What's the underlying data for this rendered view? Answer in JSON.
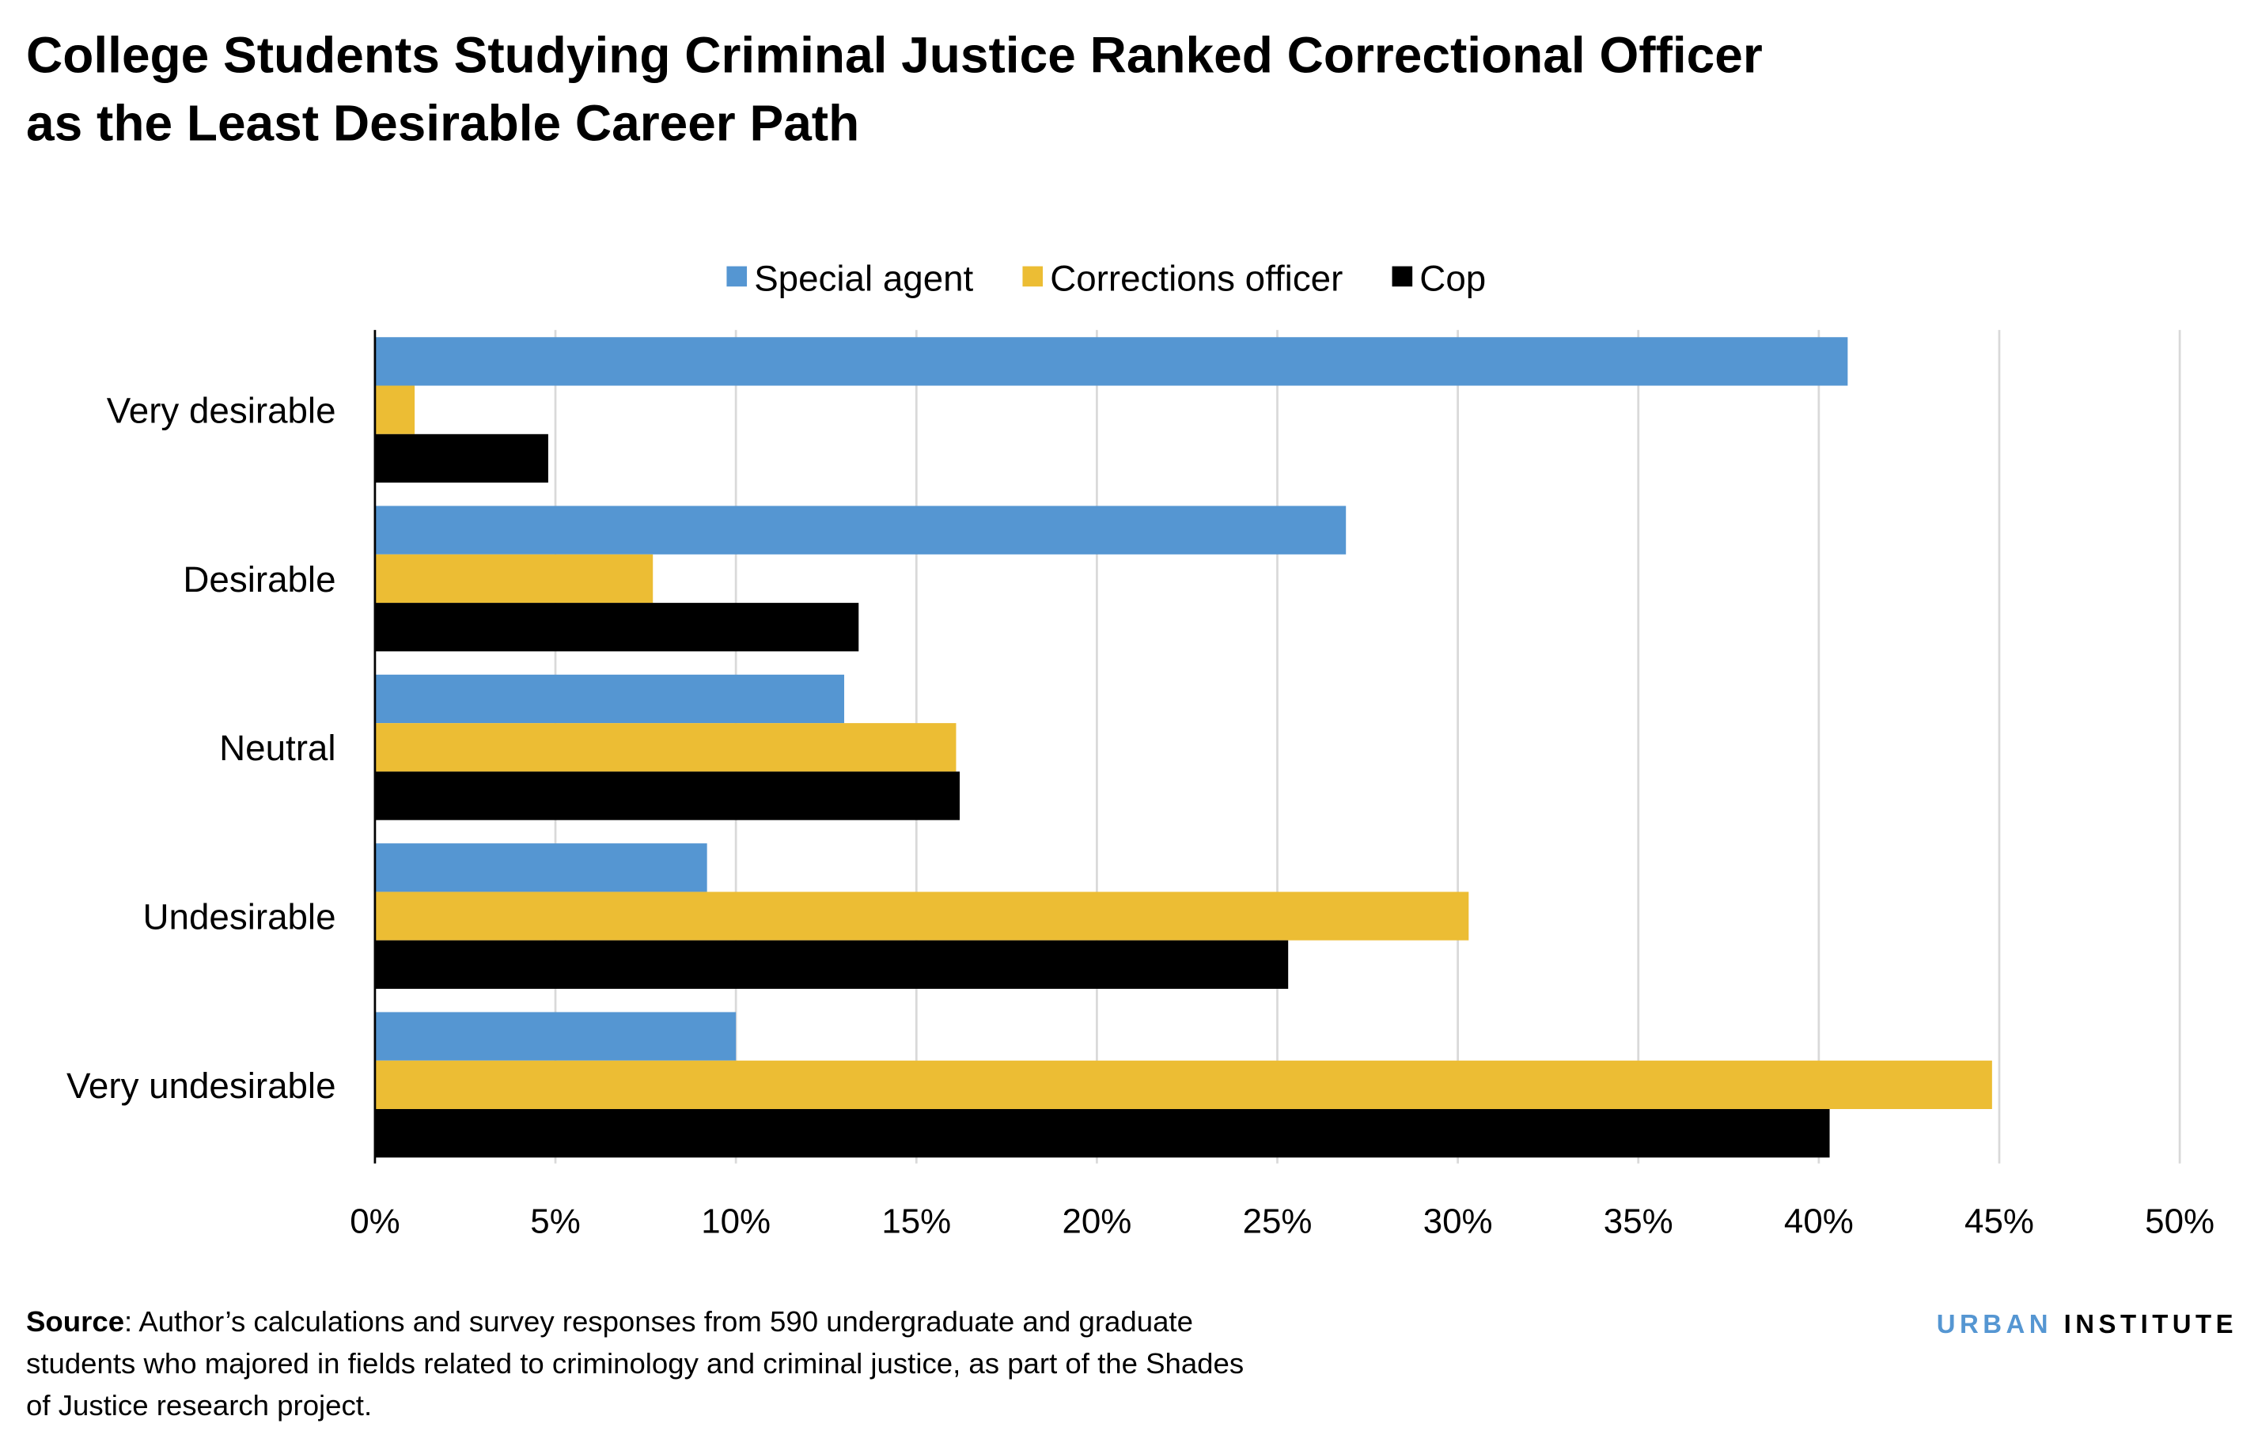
{
  "chart_data": {
    "type": "bar",
    "orientation": "horizontal",
    "title": "College Students Studying Criminal Justice Ranked Correctional Officer as the Least Desirable Career Path",
    "title_lines": [
      "College Students Studying Criminal Justice Ranked Correctional Officer",
      "as the Least Desirable Career Path"
    ],
    "categories": [
      "Very desirable",
      "Desirable",
      "Neutral",
      "Undesirable",
      "Very undesirable"
    ],
    "series": [
      {
        "name": "Special agent",
        "color": "#5596d2",
        "values": [
          40.8,
          26.9,
          13.0,
          9.2,
          10.0
        ]
      },
      {
        "name": "Corrections officer",
        "color": "#ecbd34",
        "values": [
          1.1,
          7.7,
          16.1,
          30.3,
          44.8
        ]
      },
      {
        "name": "Cop",
        "color": "#000000",
        "values": [
          4.8,
          13.4,
          16.2,
          25.3,
          40.3
        ]
      }
    ],
    "xlim": [
      0,
      50
    ],
    "xticks": [
      "0%",
      "5%",
      "10%",
      "15%",
      "20%",
      "25%",
      "30%",
      "35%",
      "40%",
      "45%",
      "50%"
    ],
    "grid": true,
    "legend_position": "top"
  },
  "source": {
    "label": "Source",
    "lines": [
      ": Author’s calculations and survey responses from 590 undergraduate and graduate",
      "students who majored in fields related to criminology and criminal justice, as part of the Shades",
      "of Justice research project."
    ]
  },
  "logo": {
    "part1": "URBAN",
    "part2": "INSTITUTE",
    "color1": "#5596d2",
    "color2": "#000000"
  }
}
